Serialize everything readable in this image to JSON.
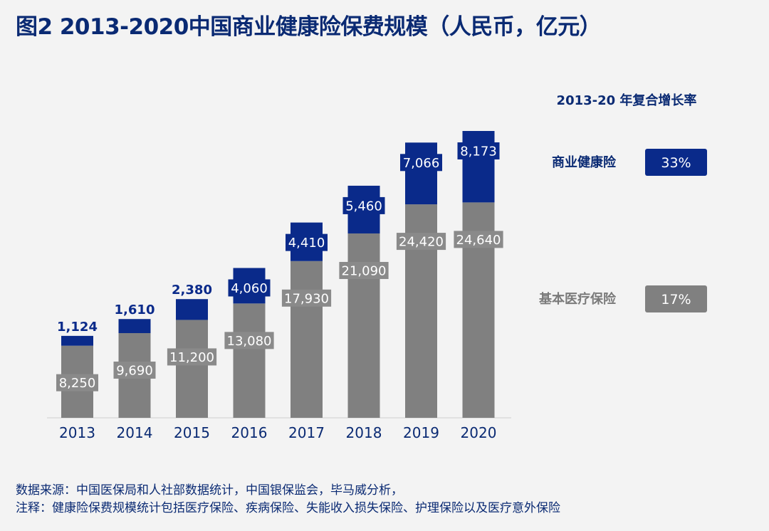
{
  "title": "图2 2013-2020中国商业健康险保费规模（人民币，亿元）",
  "footnotes": {
    "source": "数据来源：中国医保局和人社部数据统计，中国银保监会，毕马威分析，",
    "note": "注释：健康险保费规模统计包括医疗保险、疾病保险、失能收入损失保险、护理保险以及医疗意外保险"
  },
  "colors": {
    "commercial": "#0a2a8a",
    "basic": "#808080",
    "axis_text": "#0a2a73"
  },
  "chart_data": {
    "type": "bar",
    "stacked": true,
    "categories": [
      "2013",
      "2014",
      "2015",
      "2016",
      "2017",
      "2018",
      "2019",
      "2020"
    ],
    "series": [
      {
        "name": "基本医疗保险",
        "values": [
          8250,
          9690,
          11200,
          13080,
          17930,
          21090,
          24420,
          24640
        ],
        "labels": [
          "8,250",
          "9,690",
          "11,200",
          "13,080",
          "17,930",
          "21,090",
          "24,420",
          "24,640"
        ],
        "color": "#808080"
      },
      {
        "name": "商业健康险",
        "values": [
          1124,
          1610,
          2380,
          4060,
          4410,
          5460,
          7066,
          8173
        ],
        "labels": [
          "1,124",
          "1,610",
          "2,380",
          "4,060",
          "4,410",
          "5,460",
          "7,066",
          "8,173"
        ],
        "color": "#0a2a8a"
      }
    ],
    "legend": {
      "heading": "2013-20 年复合增长率",
      "placement": "right",
      "entries": [
        {
          "name": "商业健康险",
          "cagr": "33%",
          "color": "#0a2a8a"
        },
        {
          "name": "基本医疗保险",
          "cagr": "17%",
          "color": "#808080"
        }
      ]
    }
  }
}
